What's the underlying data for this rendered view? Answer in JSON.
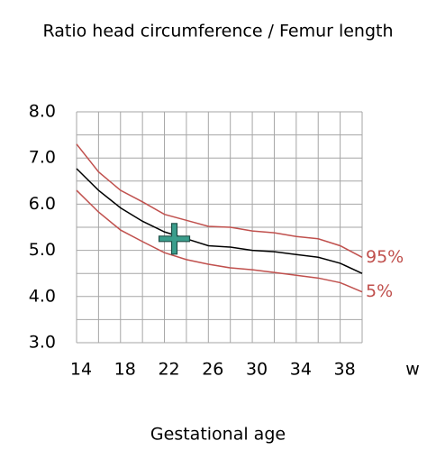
{
  "chart_data": {
    "type": "line",
    "title": "Ratio head circumference / Femur length",
    "xlabel": "Gestational age",
    "xunit": "w",
    "x": [
      14,
      16,
      18,
      20,
      22,
      24,
      26,
      28,
      30,
      32,
      34,
      36,
      38,
      40
    ],
    "series": [
      {
        "name": "95%",
        "color": "#c0504d",
        "values": [
          7.3,
          6.7,
          6.3,
          6.05,
          5.78,
          5.65,
          5.52,
          5.5,
          5.42,
          5.38,
          5.3,
          5.25,
          5.1,
          4.85
        ]
      },
      {
        "color": "#000000",
        "values": [
          6.77,
          6.3,
          5.92,
          5.63,
          5.4,
          5.25,
          5.1,
          5.07,
          5.0,
          4.97,
          4.91,
          4.85,
          4.72,
          4.5
        ]
      },
      {
        "name": "5%",
        "color": "#c0504d",
        "values": [
          6.3,
          5.83,
          5.44,
          5.19,
          4.95,
          4.8,
          4.7,
          4.62,
          4.58,
          4.52,
          4.46,
          4.4,
          4.3,
          4.1
        ]
      }
    ],
    "marker": {
      "x": 22.9,
      "y": 5.25,
      "color": "#3a9e8c"
    },
    "xlim": [
      14,
      40
    ],
    "ylim": [
      3,
      8
    ],
    "xticks": [
      14,
      18,
      22,
      26,
      30,
      34,
      38
    ],
    "yticks": [
      {
        "value": 3,
        "label": "3.0"
      },
      {
        "value": 4,
        "label": "4.0"
      },
      {
        "value": 5,
        "label": "5.0"
      },
      {
        "value": 6,
        "label": "6.0"
      },
      {
        "value": 7,
        "label": "7.0"
      },
      {
        "value": 8,
        "label": "8.0"
      }
    ],
    "xgrid": [
      14,
      16,
      18,
      20,
      22,
      24,
      26,
      28,
      30,
      32,
      34,
      36,
      38,
      40
    ],
    "ygrid": [
      3,
      3.5,
      4,
      4.5,
      5,
      5.5,
      6,
      6.5,
      7,
      7.5,
      8
    ]
  }
}
